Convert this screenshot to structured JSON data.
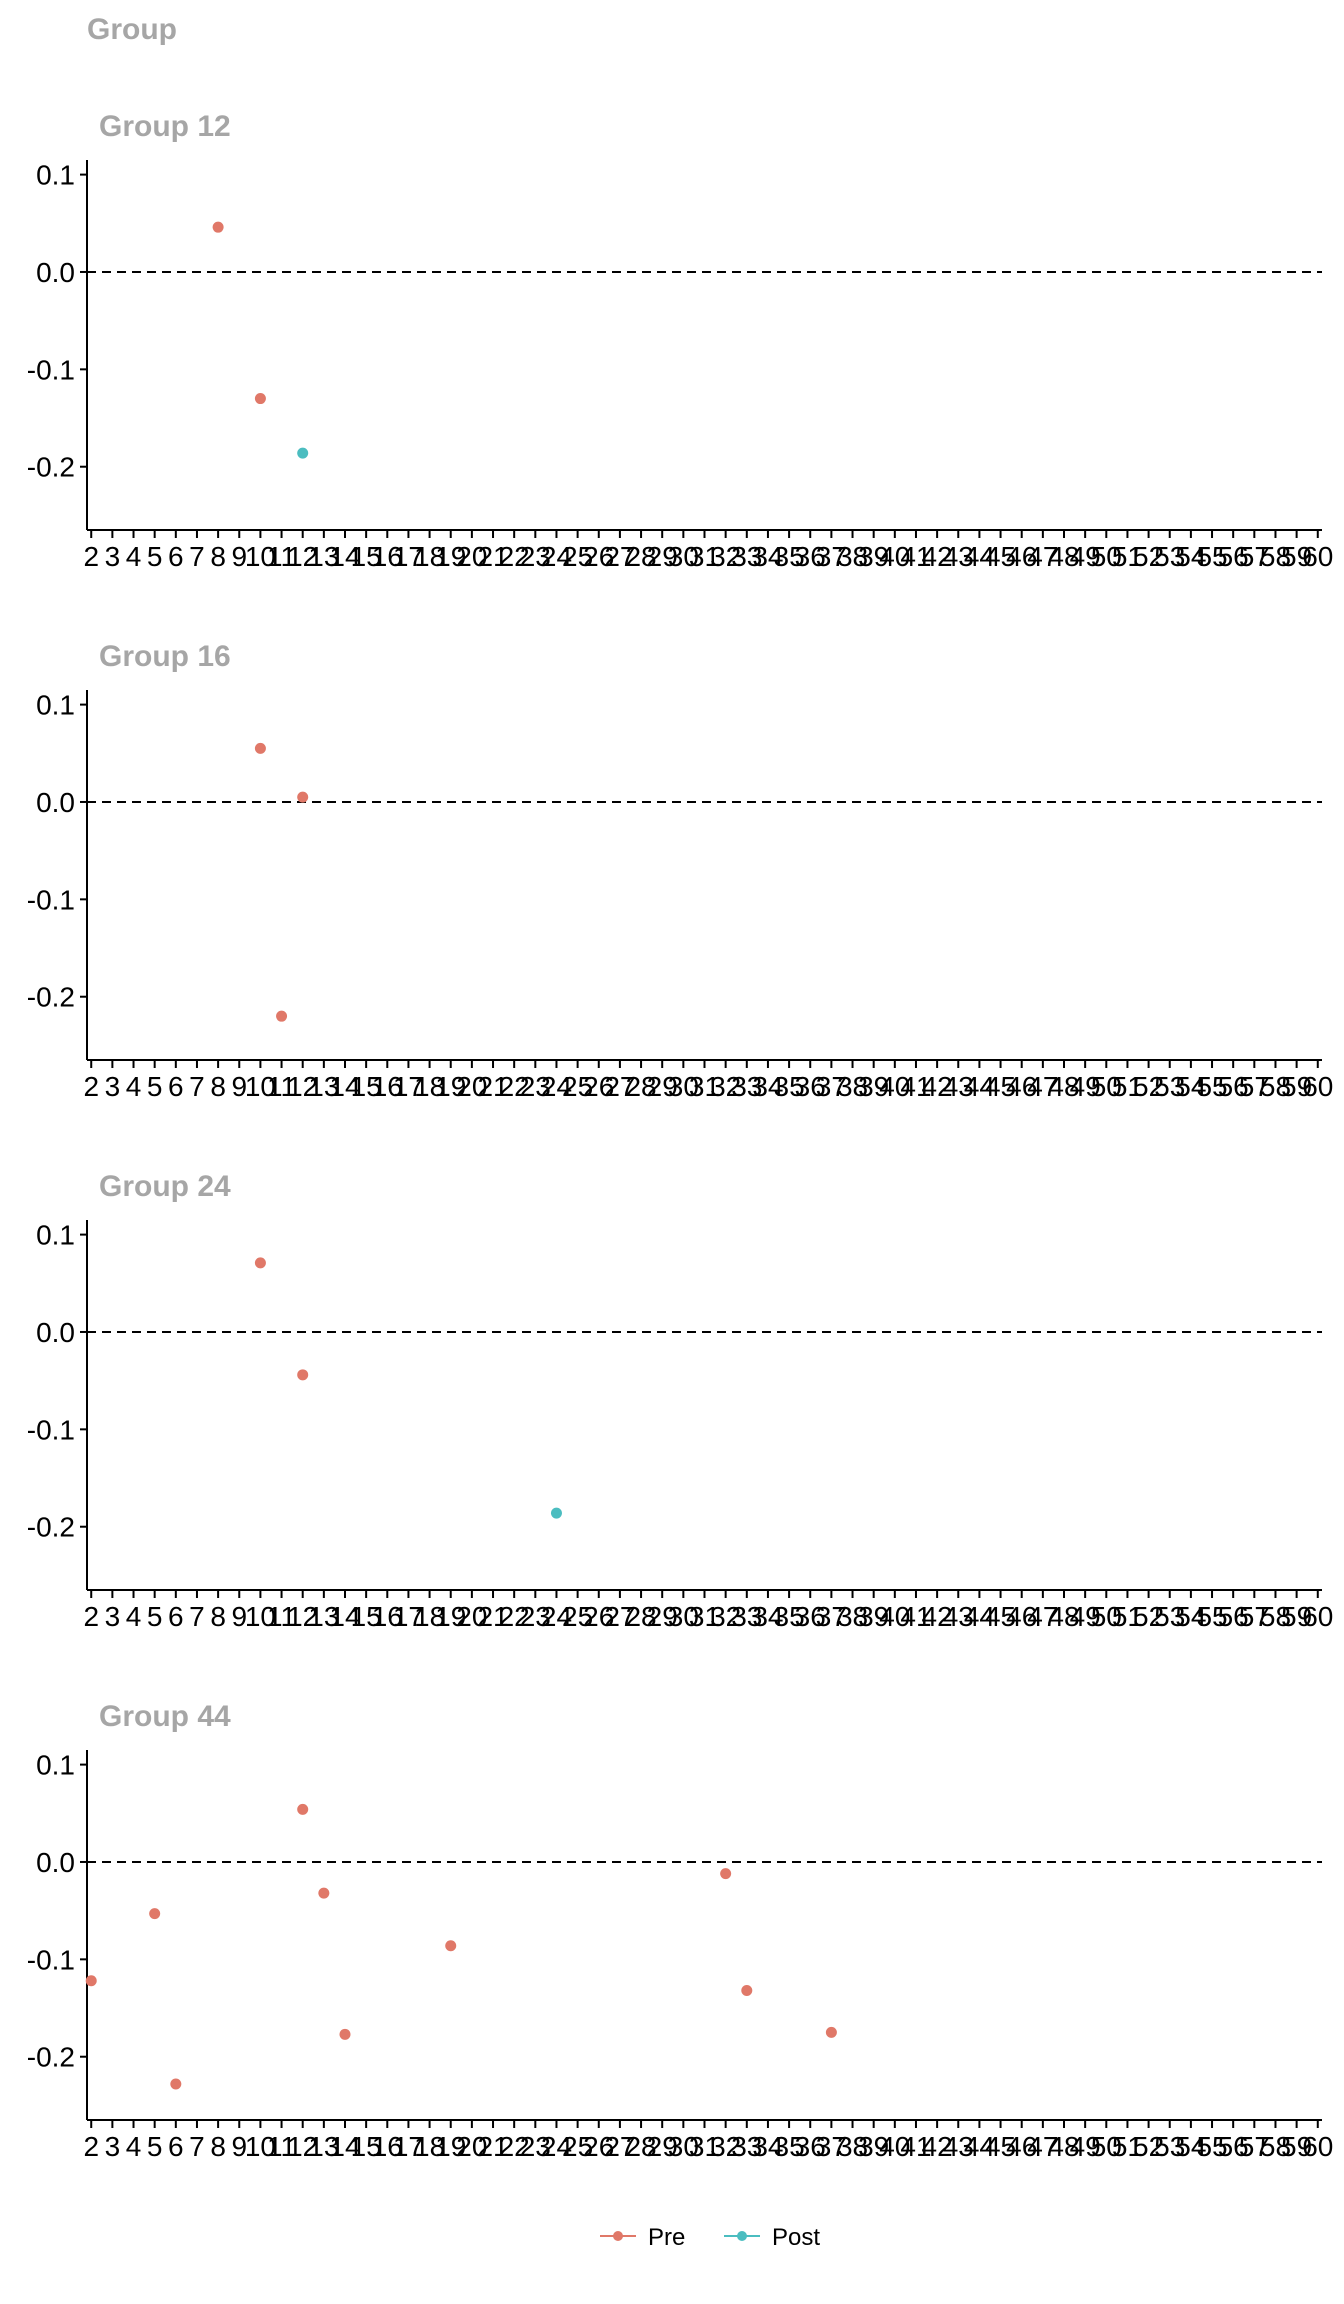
{
  "header": {
    "title": "Group"
  },
  "colors": {
    "Pre": "#E07868",
    "Post": "#4BBDC0",
    "axis": "#000000",
    "panel_title": "#a6a6a6"
  },
  "chart_data": {
    "type": "scatter",
    "facet_label": "Group",
    "x_ticks": [
      "2",
      "3",
      "4",
      "5",
      "6",
      "7",
      "8",
      "9",
      "10",
      "11",
      "12",
      "13",
      "14",
      "15",
      "16",
      "17",
      "18",
      "19",
      "20",
      "21",
      "22",
      "23",
      "24",
      "25",
      "26",
      "27",
      "28",
      "29",
      "30",
      "31",
      "32",
      "33",
      "34",
      "35",
      "36",
      "37",
      "38",
      "39",
      "40",
      "41",
      "42",
      "43",
      "44",
      "45",
      "46",
      "47",
      "48",
      "49",
      "50",
      "51",
      "52",
      "53",
      "54",
      "55",
      "56",
      "57",
      "58",
      "59",
      "60"
    ],
    "xlim": [
      1.8,
      60.2
    ],
    "y_ticks": [
      "0.1",
      "0.0",
      "-0.1",
      "-0.2"
    ],
    "y_tick_values": [
      0.1,
      0.0,
      -0.1,
      -0.2
    ],
    "ylim": [
      -0.265,
      0.115
    ],
    "reference_line": {
      "y": 0.0,
      "style": "dashed"
    },
    "legend": {
      "position": "bottom",
      "entries": [
        "Pre",
        "Post"
      ]
    },
    "panels": [
      {
        "title": "Group 12",
        "points": [
          {
            "x": 8,
            "y": 0.046,
            "group": "Pre"
          },
          {
            "x": 10,
            "y": -0.13,
            "group": "Pre"
          },
          {
            "x": 12,
            "y": -0.186,
            "group": "Post"
          }
        ]
      },
      {
        "title": "Group 16",
        "points": [
          {
            "x": 10,
            "y": 0.055,
            "group": "Pre"
          },
          {
            "x": 12,
            "y": 0.005,
            "group": "Pre"
          },
          {
            "x": 11,
            "y": -0.22,
            "group": "Pre"
          }
        ]
      },
      {
        "title": "Group 24",
        "points": [
          {
            "x": 10,
            "y": 0.071,
            "group": "Pre"
          },
          {
            "x": 12,
            "y": -0.044,
            "group": "Pre"
          },
          {
            "x": 24,
            "y": -0.186,
            "group": "Post"
          }
        ]
      },
      {
        "title": "Group 44",
        "points": [
          {
            "x": 2,
            "y": -0.122,
            "group": "Pre"
          },
          {
            "x": 5,
            "y": -0.053,
            "group": "Pre"
          },
          {
            "x": 6,
            "y": -0.228,
            "group": "Pre"
          },
          {
            "x": 12,
            "y": 0.054,
            "group": "Pre"
          },
          {
            "x": 13,
            "y": -0.032,
            "group": "Pre"
          },
          {
            "x": 14,
            "y": -0.177,
            "group": "Pre"
          },
          {
            "x": 19,
            "y": -0.086,
            "group": "Pre"
          },
          {
            "x": 32,
            "y": -0.012,
            "group": "Pre"
          },
          {
            "x": 33,
            "y": -0.132,
            "group": "Pre"
          },
          {
            "x": 37,
            "y": -0.175,
            "group": "Pre"
          }
        ]
      }
    ]
  }
}
